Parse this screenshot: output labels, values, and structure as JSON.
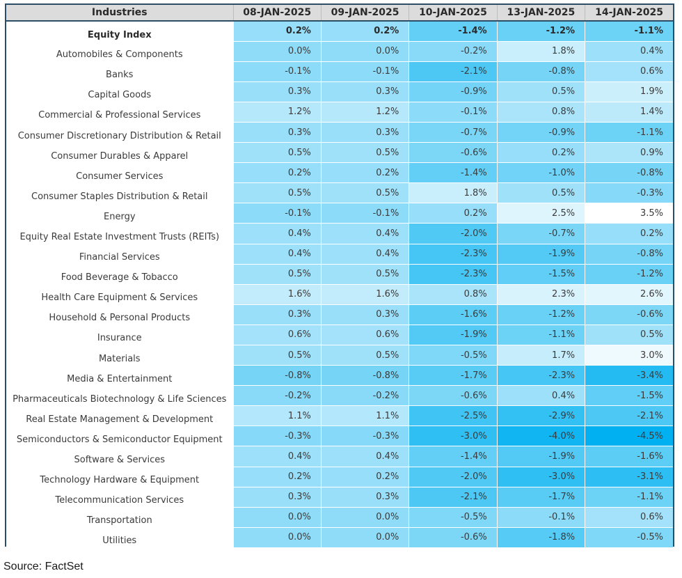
{
  "chart_data": {
    "type": "table",
    "header_label": "Industries",
    "columns": [
      "08-JAN-2025",
      "09-JAN-2025",
      "10-JAN-2025",
      "13-JAN-2025",
      "14-JAN-2025"
    ],
    "unit": "%",
    "color_scale": {
      "min": -4.5,
      "max": 3.5,
      "low_color": "#00b0f0",
      "high_color": "#ffffff"
    },
    "rows": [
      {
        "name": "Equity Index",
        "bold": true,
        "values": [
          0.2,
          0.2,
          -1.4,
          -1.2,
          -1.1
        ]
      },
      {
        "name": "Automobiles & Components",
        "values": [
          0.0,
          0.0,
          -0.2,
          1.8,
          0.4
        ]
      },
      {
        "name": "Banks",
        "values": [
          -0.1,
          -0.1,
          -2.1,
          -0.8,
          0.6
        ]
      },
      {
        "name": "Capital Goods",
        "values": [
          0.3,
          0.3,
          -0.9,
          0.5,
          1.9
        ]
      },
      {
        "name": "Commercial & Professional Services",
        "values": [
          1.2,
          1.2,
          -0.1,
          0.8,
          1.4
        ]
      },
      {
        "name": "Consumer Discretionary Distribution & Retail",
        "values": [
          0.3,
          0.3,
          -0.7,
          -0.9,
          -1.1
        ]
      },
      {
        "name": "Consumer Durables & Apparel",
        "values": [
          0.5,
          0.5,
          -0.6,
          0.2,
          0.9
        ]
      },
      {
        "name": "Consumer Services",
        "values": [
          0.2,
          0.2,
          -1.4,
          -1.0,
          -0.8
        ]
      },
      {
        "name": "Consumer Staples Distribution & Retail",
        "values": [
          0.5,
          0.5,
          1.8,
          0.5,
          -0.3
        ]
      },
      {
        "name": "Energy",
        "values": [
          -0.1,
          -0.1,
          0.2,
          2.5,
          3.5
        ]
      },
      {
        "name": "Equity Real Estate Investment Trusts (REITs)",
        "values": [
          0.4,
          0.4,
          -2.0,
          -0.7,
          0.2
        ]
      },
      {
        "name": "Financial Services",
        "values": [
          0.4,
          0.4,
          -2.3,
          -1.9,
          -0.8
        ]
      },
      {
        "name": "Food Beverage & Tobacco",
        "values": [
          0.5,
          0.5,
          -2.3,
          -1.5,
          -1.2
        ]
      },
      {
        "name": "Health Care Equipment & Services",
        "values": [
          1.6,
          1.6,
          0.8,
          2.3,
          2.6
        ]
      },
      {
        "name": "Household & Personal Products",
        "values": [
          0.3,
          0.3,
          -1.6,
          -1.2,
          -0.6
        ]
      },
      {
        "name": "Insurance",
        "values": [
          0.6,
          0.6,
          -1.9,
          -1.1,
          0.5
        ]
      },
      {
        "name": "Materials",
        "values": [
          0.5,
          0.5,
          -0.5,
          1.7,
          3.0
        ]
      },
      {
        "name": "Media & Entertainment",
        "values": [
          -0.8,
          -0.8,
          -1.7,
          -2.3,
          -3.4
        ]
      },
      {
        "name": "Pharmaceuticals Biotechnology & Life Sciences",
        "values": [
          -0.2,
          -0.2,
          -0.6,
          0.4,
          -1.5
        ]
      },
      {
        "name": "Real Estate Management & Development",
        "values": [
          1.1,
          1.1,
          -2.5,
          -2.9,
          -2.1
        ]
      },
      {
        "name": "Semiconductors & Semiconductor Equipment",
        "values": [
          -0.3,
          -0.3,
          -3.0,
          -4.0,
          -4.5
        ]
      },
      {
        "name": "Software & Services",
        "values": [
          0.4,
          0.4,
          -1.4,
          -1.9,
          -1.6
        ]
      },
      {
        "name": "Technology Hardware & Equipment",
        "values": [
          0.2,
          0.2,
          -2.0,
          -3.0,
          -3.1
        ]
      },
      {
        "name": "Telecommunication Services",
        "values": [
          0.3,
          0.3,
          -2.1,
          -1.7,
          -1.1
        ]
      },
      {
        "name": "Transportation",
        "values": [
          0.0,
          0.0,
          -0.5,
          -0.1,
          0.6
        ]
      },
      {
        "name": "Utilities",
        "values": [
          0.0,
          0.0,
          -0.6,
          -1.8,
          -0.5
        ]
      }
    ]
  },
  "source": "Source: FactSet"
}
